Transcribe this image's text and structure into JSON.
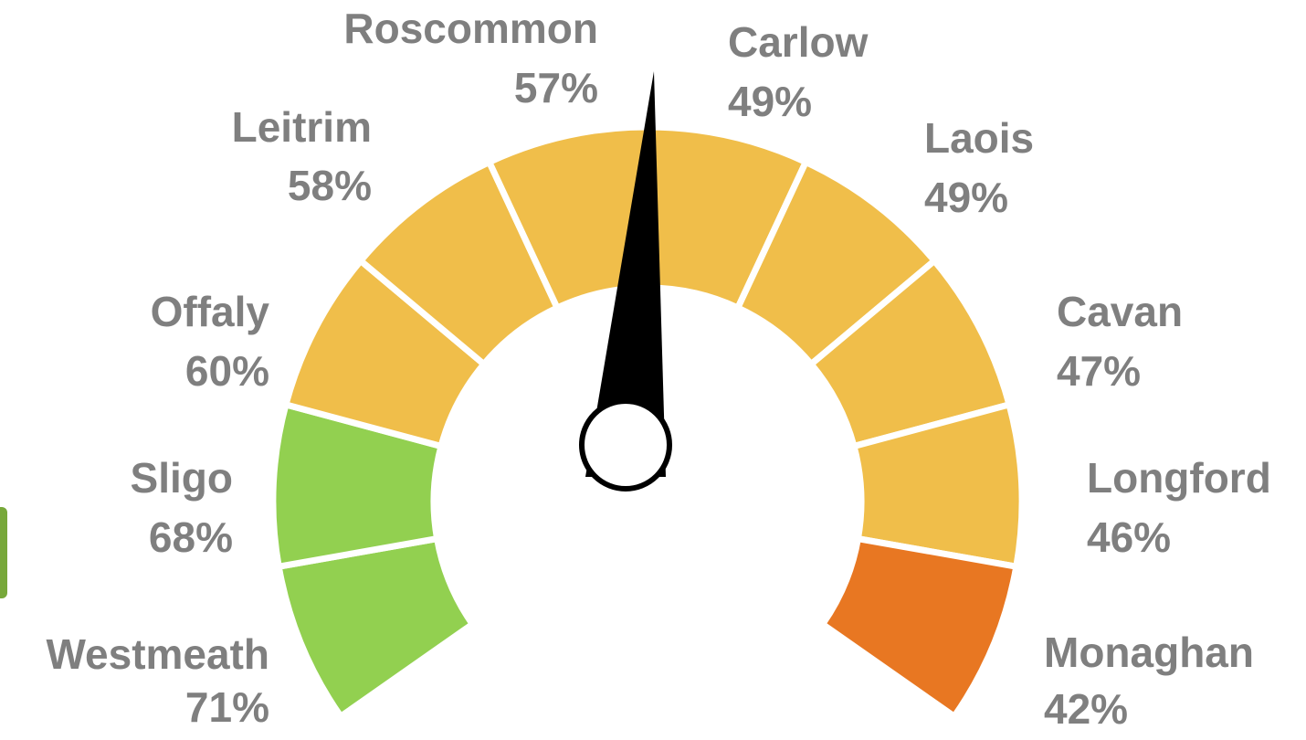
{
  "chart_data": {
    "type": "gauge",
    "categories": [
      "Westmeath",
      "Sligo",
      "Offaly",
      "Leitrim",
      "Roscommon",
      "Carlow",
      "Laois",
      "Cavan",
      "Longford",
      "Monaghan"
    ],
    "values": [
      71,
      68,
      60,
      58,
      57,
      49,
      49,
      47,
      46,
      42
    ],
    "value_labels": [
      "71%",
      "68%",
      "60%",
      "58%",
      "57%",
      "49%",
      "49%",
      "47%",
      "46%",
      "42%"
    ],
    "colors": [
      "#92d050",
      "#92d050",
      "#f0be4a",
      "#f0be4a",
      "#f0be4a",
      "#f0be4a",
      "#f0be4a",
      "#f0be4a",
      "#f0be4a",
      "#e87722"
    ]
  }
}
